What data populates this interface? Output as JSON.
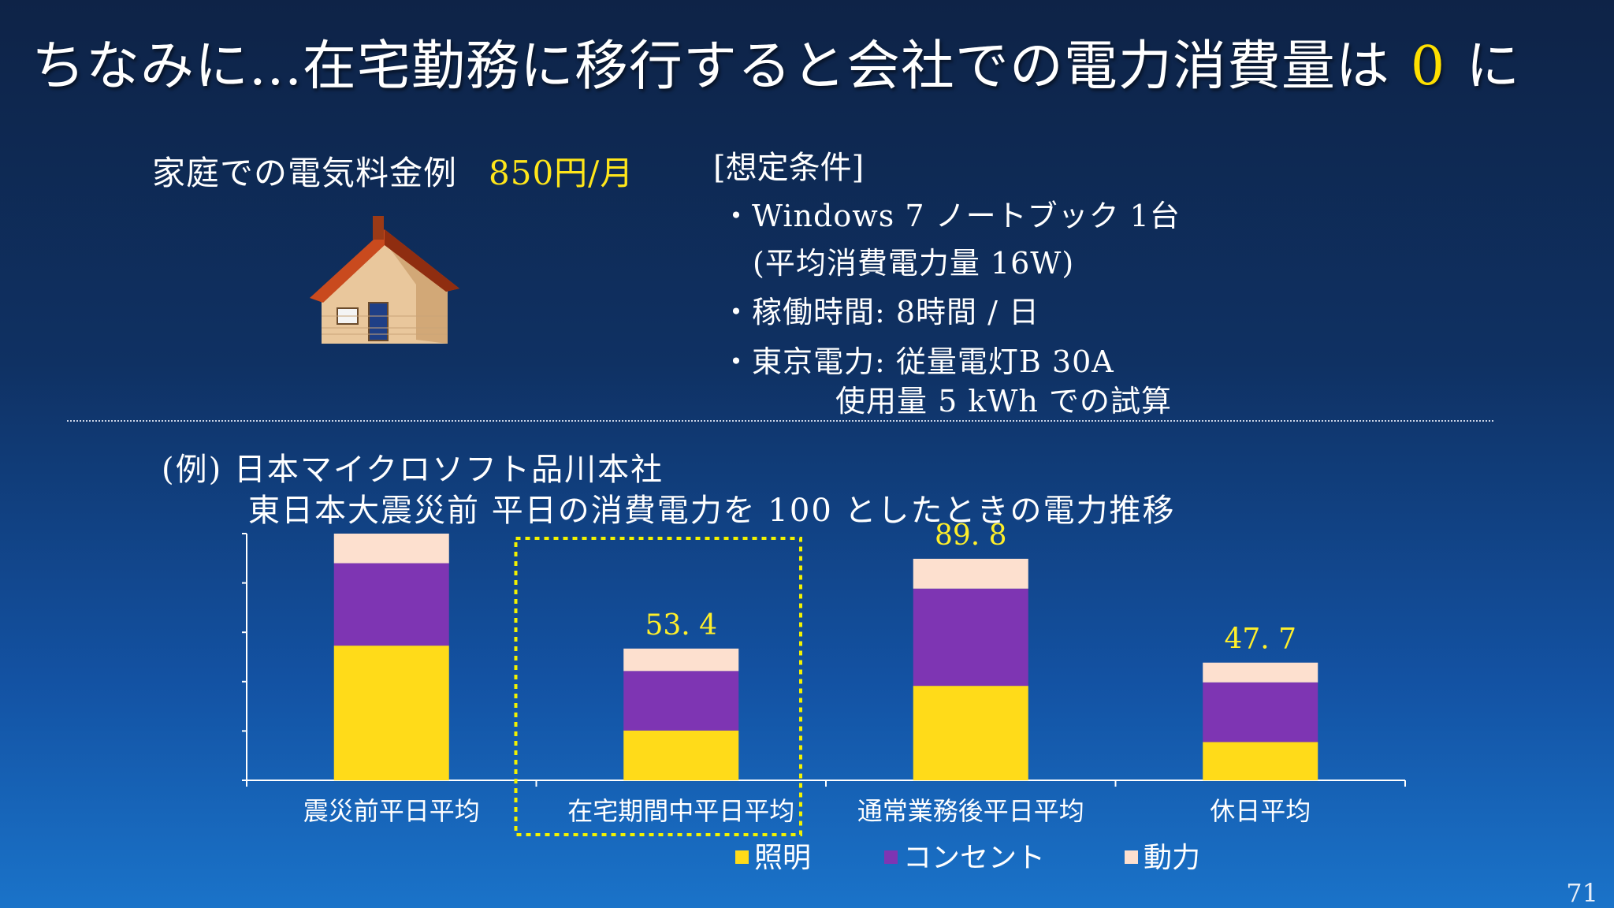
{
  "slide": {
    "title_prefix": "ちなみに...在宅勤務に移行すると会社での電力消費量は",
    "title_zero": "0",
    "title_suffix": "に",
    "page_number": "71"
  },
  "home": {
    "label": "家庭での電気料金例",
    "fee": "850円/月",
    "icon": "house-icon"
  },
  "conditions": {
    "heading": "[想定条件]",
    "lines": [
      "・Windows 7 ノートブック 1台",
      "(平均消費電力量 16W)",
      "・稼働時間: 8時間 / 日",
      "・東京電力:   従量電灯B 30A",
      "使用量 5 kWh での試算"
    ]
  },
  "example": {
    "line1": "(例) 日本マイクロソフト品川本社",
    "line2": "東日本大震災前 平日の消費電力を 100 としたときの電力推移"
  },
  "chart_data": {
    "type": "bar",
    "stacked": true,
    "categories": [
      "震災前平日平均",
      "在宅期間中平日平均",
      "通常業務後平日平均",
      "休日平均"
    ],
    "series": [
      {
        "name": "照明",
        "color": "#ffdb19",
        "values": [
          54.6,
          20.2,
          38.3,
          15.5
        ]
      },
      {
        "name": "コンセント",
        "color": "#7e35b3",
        "values": [
          33.4,
          24.1,
          39.4,
          24.2
        ]
      },
      {
        "name": "動力",
        "color": "#fde0cf",
        "values": [
          12.0,
          9.1,
          12.1,
          8.0
        ]
      }
    ],
    "data_labels": [
      null,
      "53. 4",
      "89. 8",
      "47. 7"
    ],
    "label_color": "#ffef2a",
    "ylim": [
      0,
      100
    ],
    "y_ticks": 5,
    "highlighted_category": "在宅期間中平日平均",
    "highlight_color": "#f2f200",
    "legend_position": "bottom-center",
    "grid": false
  }
}
